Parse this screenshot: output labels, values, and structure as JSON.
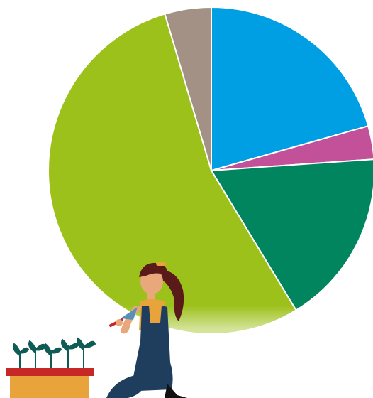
{
  "chart_data": {
    "type": "pie",
    "title": "",
    "slices": [
      {
        "value": 20.6,
        "color": "#009FE3"
      },
      {
        "value": 3.3,
        "color": "#C3519A"
      },
      {
        "value": 17.4,
        "color": "#00855F"
      },
      {
        "value": 54.1,
        "color": "#9DC11B"
      },
      {
        "value": 4.6,
        "color": "#A39185"
      }
    ],
    "start_angle_deg": 0,
    "direction": "clockwise",
    "legend": "none"
  },
  "illustration": {
    "icon": "gardener-kneeling-with-trowel-and-seedlings-icon",
    "colors": {
      "hair": "#5A1A1A",
      "skin": "#E8A87C",
      "overalls": "#1F3D5C",
      "shirt": "#E8A33A",
      "tray": "#E8A33A",
      "tray_rim": "#C62828",
      "leaves": "#0E5C55",
      "trowel": "#5C8FB5"
    }
  }
}
